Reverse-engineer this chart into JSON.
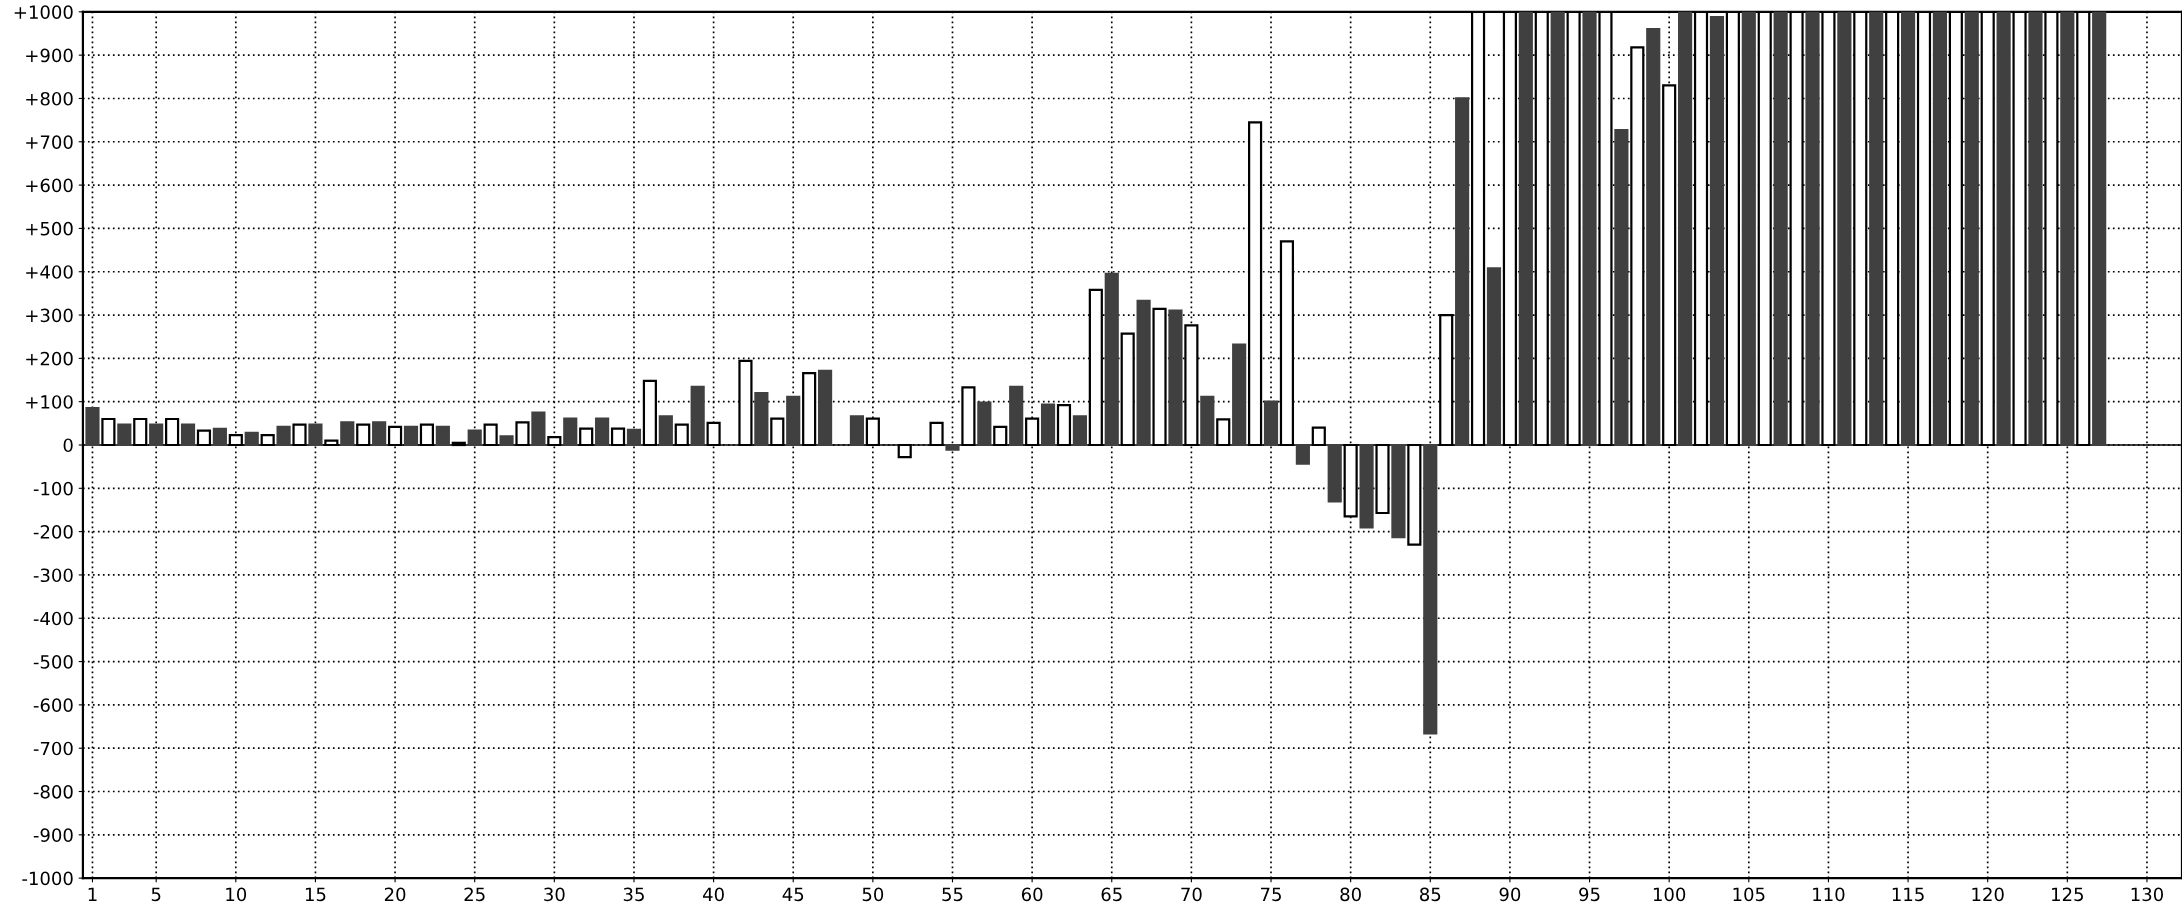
{
  "chart_data": {
    "type": "bar",
    "x": [
      1,
      2,
      3,
      4,
      5,
      6,
      7,
      8,
      9,
      10,
      11,
      12,
      13,
      14,
      15,
      16,
      17,
      18,
      19,
      20,
      21,
      22,
      23,
      24,
      25,
      26,
      27,
      28,
      29,
      30,
      31,
      32,
      33,
      34,
      35,
      36,
      37,
      38,
      39,
      40,
      41,
      42,
      43,
      44,
      45,
      46,
      47,
      48,
      49,
      50,
      51,
      52,
      53,
      54,
      55,
      56,
      57,
      58,
      59,
      60,
      61,
      62,
      63,
      64,
      65,
      66,
      67,
      68,
      69,
      70,
      71,
      72,
      73,
      74,
      75,
      76,
      77,
      78,
      79,
      80,
      81,
      82,
      83,
      84,
      85,
      86,
      87,
      88,
      89,
      90,
      91,
      92,
      93,
      94,
      95,
      96,
      97,
      98,
      99,
      100,
      101,
      102,
      103,
      104,
      105,
      106,
      107,
      108,
      109,
      110,
      111,
      112,
      113,
      114,
      115,
      116,
      117,
      118,
      119,
      120,
      121,
      122,
      123,
      124,
      125,
      126,
      127
    ],
    "values": [
      85,
      60,
      47,
      60,
      47,
      60,
      47,
      33,
      37,
      23,
      28,
      23,
      42,
      47,
      47,
      10,
      52,
      47,
      52,
      42,
      42,
      47,
      42,
      5,
      33,
      47,
      20,
      52,
      75,
      18,
      61,
      38,
      61,
      38,
      35,
      148,
      66,
      47,
      134,
      51,
      null,
      194,
      120,
      61,
      111,
      166,
      171,
      null,
      66,
      61,
      null,
      -28,
      null,
      51,
      -11,
      133,
      98,
      42,
      134,
      61,
      93,
      92,
      66,
      358,
      395,
      257,
      333,
      314,
      310,
      276,
      111,
      59,
      232,
      745,
      100,
      470,
      -43,
      40,
      -130,
      -165,
      -190,
      -157,
      -213,
      -230,
      -666,
      300,
      800,
      1000,
      408,
      1000,
      1000,
      1000,
      1000,
      1000,
      1000,
      1000,
      727,
      918,
      960,
      830,
      1000,
      1000,
      988,
      1000,
      1000,
      1000,
      1000,
      1000,
      1000,
      1000,
      1000,
      1000,
      1000,
      1000,
      1000,
      1000,
      1000,
      1000,
      1000,
      1000,
      1000,
      1000,
      1000,
      1000,
      1000,
      1000,
      1000
    ],
    "colors": [
      "#404040",
      "#ffffff",
      "#404040",
      "#ffffff",
      "#404040",
      "#ffffff",
      "#404040",
      "#ffffff",
      "#404040",
      "#ffffff",
      "#404040",
      "#ffffff",
      "#404040",
      "#ffffff",
      "#404040",
      "#ffffff",
      "#404040",
      "#ffffff",
      "#404040",
      "#ffffff",
      "#404040",
      "#ffffff",
      "#404040",
      "#ffffff",
      "#404040",
      "#ffffff",
      "#404040",
      "#ffffff",
      "#404040",
      "#ffffff",
      "#404040",
      "#ffffff",
      "#404040",
      "#ffffff",
      "#404040",
      "#ffffff",
      "#404040",
      "#ffffff",
      "#404040",
      "#ffffff",
      "#404040",
      "#ffffff",
      "#404040",
      "#ffffff",
      "#404040",
      "#ffffff",
      "#404040",
      "#ffffff",
      "#404040",
      "#ffffff",
      "#404040",
      "#ffffff",
      "#404040",
      "#ffffff",
      "#404040",
      "#ffffff",
      "#404040",
      "#ffffff",
      "#404040",
      "#ffffff",
      "#404040",
      "#ffffff",
      "#404040",
      "#ffffff",
      "#404040",
      "#ffffff",
      "#404040",
      "#ffffff",
      "#404040",
      "#ffffff",
      "#404040",
      "#ffffff",
      "#404040",
      "#ffffff",
      "#404040",
      "#ffffff",
      "#404040",
      "#ffffff",
      "#404040",
      "#ffffff",
      "#404040",
      "#ffffff",
      "#404040",
      "#ffffff",
      "#404040",
      "#ffffff",
      "#404040",
      "#ffffff",
      "#404040",
      "#ffffff",
      "#404040",
      "#ffffff",
      "#404040",
      "#ffffff",
      "#404040",
      "#ffffff",
      "#404040",
      "#ffffff",
      "#404040",
      "#ffffff",
      "#404040",
      "#ffffff",
      "#404040",
      "#ffffff",
      "#404040",
      "#ffffff",
      "#404040",
      "#ffffff",
      "#404040",
      "#ffffff",
      "#404040",
      "#ffffff",
      "#404040",
      "#ffffff",
      "#404040",
      "#ffffff",
      "#404040",
      "#ffffff",
      "#404040",
      "#ffffff",
      "#404040",
      "#ffffff",
      "#404040",
      "#ffffff",
      "#404040",
      "#ffffff",
      "#404040"
    ],
    "xlim": [
      0.4,
      132.2
    ],
    "ylim": [
      -1000,
      1000
    ],
    "xticks": [
      1,
      5,
      10,
      15,
      20,
      25,
      30,
      35,
      40,
      45,
      50,
      55,
      60,
      65,
      70,
      75,
      80,
      85,
      90,
      95,
      100,
      105,
      110,
      115,
      120,
      125,
      130
    ],
    "yticks": [
      {
        "value": -1000,
        "label": "-1000"
      },
      {
        "value": -900,
        "label": "-900"
      },
      {
        "value": -800,
        "label": "-800"
      },
      {
        "value": -700,
        "label": "-700"
      },
      {
        "value": -600,
        "label": "-600"
      },
      {
        "value": -500,
        "label": "-500"
      },
      {
        "value": -400,
        "label": "-400"
      },
      {
        "value": -300,
        "label": "-300"
      },
      {
        "value": -200,
        "label": "-200"
      },
      {
        "value": -100,
        "label": "-100"
      },
      0,
      {
        "value": 100,
        "label": "+100"
      },
      {
        "value": 200,
        "label": "+200"
      },
      {
        "value": 300,
        "label": "+300"
      },
      {
        "value": 400,
        "label": "+400"
      },
      {
        "value": 500,
        "label": "+500"
      },
      {
        "value": 600,
        "label": "+600"
      },
      {
        "value": 700,
        "label": "+700"
      },
      {
        "value": 800,
        "label": "+800"
      },
      {
        "value": 900,
        "label": "+900"
      },
      {
        "value": 1000,
        "label": "+1000"
      }
    ],
    "grid": true
  }
}
